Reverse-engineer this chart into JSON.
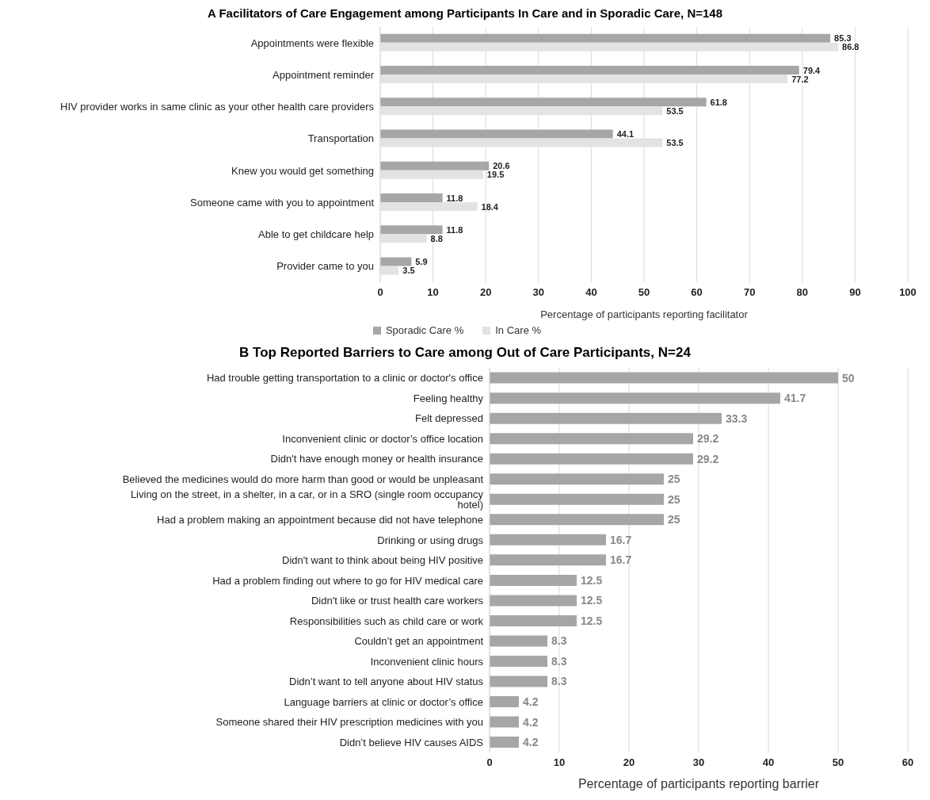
{
  "chart_data": [
    {
      "type": "bar",
      "orientation": "horizontal",
      "title": "A  Facilitators of Care Engagement among Participants In Care and in Sporadic Care, N=148",
      "xlabel": "Percentage of participants reporting facilitator",
      "categories": [
        "Appointments were flexible",
        "Appointment reminder",
        "HIV provider works in same clinic as your other health care providers",
        "Transportation",
        "Knew you would get something",
        "Someone came with you to appointment",
        "Able to get childcare help",
        "Provider came to you"
      ],
      "series": [
        {
          "name": "Sporadic Care %",
          "color": "#a6a6a6",
          "values": [
            85.3,
            79.4,
            61.8,
            44.1,
            20.6,
            11.8,
            11.8,
            5.9
          ]
        },
        {
          "name": "In Care %",
          "color": "#e3e3e3",
          "values": [
            86.8,
            77.2,
            53.5,
            53.5,
            19.5,
            18.4,
            8.8,
            3.5
          ]
        }
      ],
      "xlim": [
        0,
        100
      ],
      "xticks": [
        0,
        10,
        20,
        30,
        40,
        50,
        60,
        70,
        80,
        90,
        100
      ],
      "grid": "x",
      "legend": "bottom",
      "data_labels": true
    },
    {
      "type": "bar",
      "orientation": "horizontal",
      "title": "B  Top Reported Barriers to Care among Out of Care Participants, N=24",
      "xlabel": "Percentage of participants reporting barrier",
      "categories": [
        "Had trouble getting transportation to a clinic or doctor's office",
        "Feeling healthy",
        "Felt depressed",
        "Inconvenient clinic or doctor’s office location",
        "Didn't have enough money or health insurance",
        "Believed the medicines would do more harm than good or would be unpleasant",
        "Living on the street, in a shelter, in a car, or in a SRO (single room occupancy hotel)",
        "Had a problem making an appointment because did not have telephone",
        "Drinking or using drugs",
        "Didn't want to think about being HIV positive",
        "Had a problem finding out where to go for HIV medical care",
        "Didn't like or trust health care workers",
        "Responsibilities such as child care or work",
        "Couldn’t get an appointment",
        "Inconvenient clinic hours",
        "Didn’t want to tell anyone about HIV status",
        "Language barriers at clinic or doctor’s office",
        "Someone shared their HIV prescription medicines with you",
        "Didn’t believe HIV causes AIDS"
      ],
      "series": [
        {
          "color": "#a6a6a6",
          "values": [
            50,
            41.7,
            33.3,
            29.2,
            29.2,
            25,
            25,
            25,
            16.7,
            16.7,
            12.5,
            12.5,
            12.5,
            8.3,
            8.3,
            8.3,
            4.2,
            4.2,
            4.2
          ]
        }
      ],
      "xlim": [
        0,
        60
      ],
      "xticks": [
        0,
        10,
        20,
        30,
        40,
        50,
        60
      ],
      "grid": "x",
      "legend": false,
      "data_labels": true
    }
  ]
}
